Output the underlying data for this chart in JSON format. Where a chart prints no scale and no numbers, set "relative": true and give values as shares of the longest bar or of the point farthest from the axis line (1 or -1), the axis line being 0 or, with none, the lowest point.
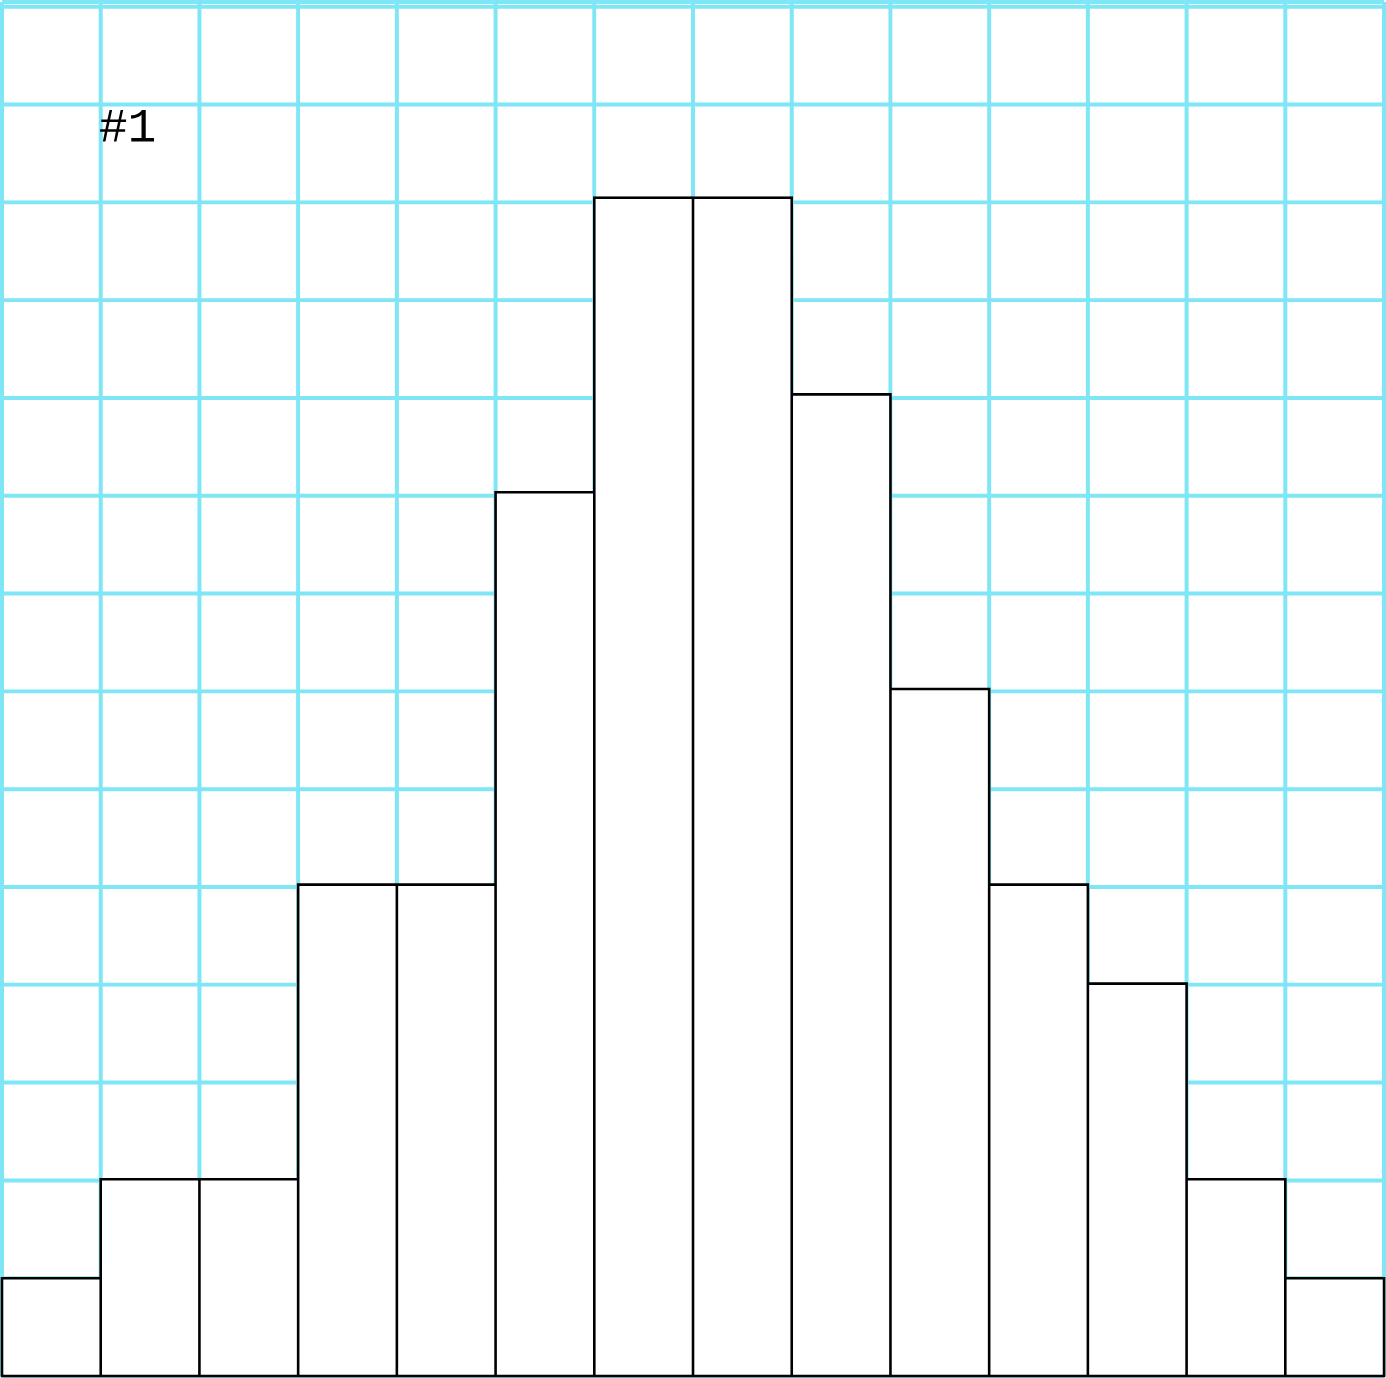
{
  "chart_data": {
    "type": "bar",
    "relative": true,
    "grid": true,
    "categories": [
      null,
      null,
      null,
      null,
      null,
      null,
      null,
      null,
      null,
      null,
      null,
      null,
      null,
      null
    ],
    "values": [
      0.083,
      0.167,
      0.167,
      0.417,
      0.417,
      0.75,
      1,
      1,
      0.833,
      0.583,
      0.417,
      0.333,
      0.167,
      0.083
    ],
    "color": "#ffffff",
    "annotations": [
      "#1"
    ]
  }
}
